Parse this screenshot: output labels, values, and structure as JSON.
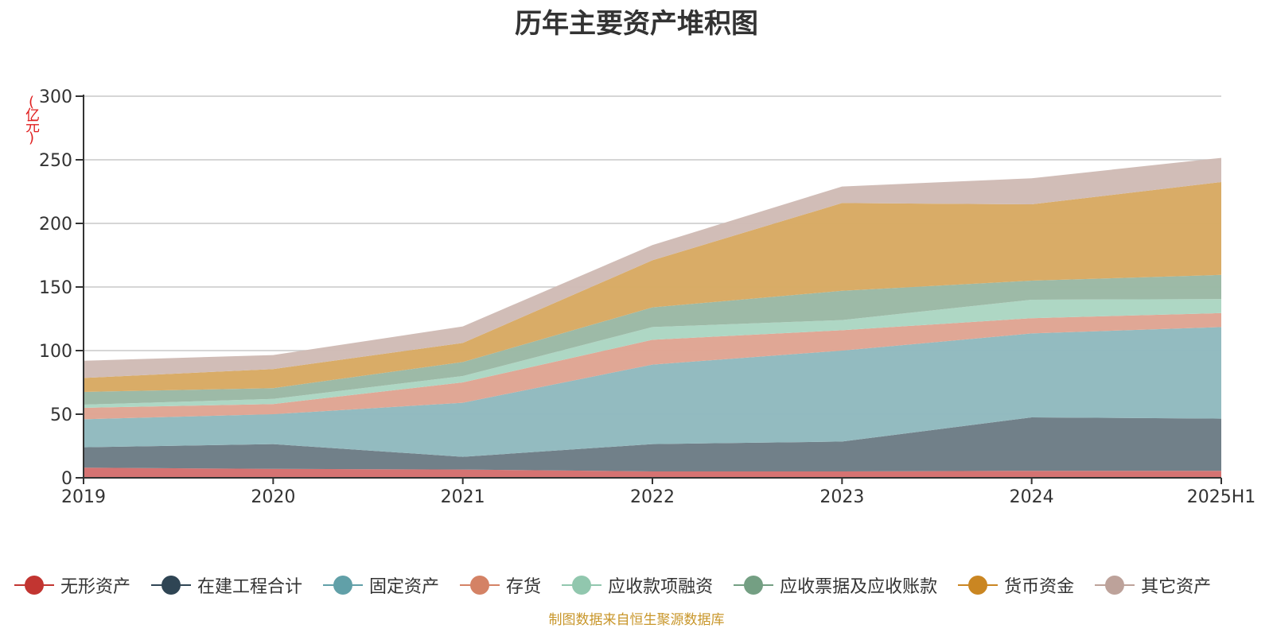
{
  "page": {
    "title": "历年主要资产堆积图",
    "unit_label": "(亿元)",
    "source_note": "制图数据来自恒生聚源数据库"
  },
  "chart_data": {
    "type": "area",
    "stacked": true,
    "title": "历年主要资产堆积图",
    "ylabel": "(亿元)",
    "xlabel": "",
    "categories": [
      "2019",
      "2020",
      "2021",
      "2022",
      "2023",
      "2024",
      "2025H1"
    ],
    "ylim": [
      0,
      300
    ],
    "yticks": [
      0,
      50,
      100,
      150,
      200,
      250,
      300
    ],
    "grid": true,
    "legend_position": "bottom",
    "series": [
      {
        "name": "无形资产",
        "color": "#c23531",
        "area_color": "#d4706f",
        "values": [
          8,
          7,
          6.5,
          5,
          5,
          5.5,
          5.5
        ]
      },
      {
        "name": "在建工程合计",
        "color": "#2f4554",
        "area_color": "#6e7d87",
        "values": [
          16,
          19.5,
          10,
          21.5,
          23.5,
          42,
          41
        ]
      },
      {
        "name": "固定资产",
        "color": "#61a0a8",
        "area_color": "#91babf",
        "values": [
          22,
          23.5,
          42.5,
          62.5,
          71.5,
          66,
          72
        ]
      },
      {
        "name": "存货",
        "color": "#d48265",
        "area_color": "#dfa593",
        "values": [
          9,
          8,
          16,
          19.5,
          16,
          12,
          11
        ]
      },
      {
        "name": "应收款项融资",
        "color": "#91c7ae",
        "area_color": "#acd6c3",
        "values": [
          2.5,
          4,
          5,
          10,
          8,
          14.5,
          11
        ]
      },
      {
        "name": "应收票据及应收账款",
        "color": "#749f83",
        "area_color": "#9bb9a5",
        "values": [
          10,
          8.5,
          11,
          15.5,
          23,
          15,
          19
        ]
      },
      {
        "name": "货币资金",
        "color": "#ca8622",
        "area_color": "#d8aa64",
        "values": [
          11,
          15,
          15,
          37,
          69,
          60,
          73
        ]
      },
      {
        "name": "其它资产",
        "color": "#bda29a",
        "area_color": "#d0bcb6",
        "values": [
          13.5,
          11,
          13,
          12,
          13,
          20.5,
          19
        ]
      }
    ]
  }
}
